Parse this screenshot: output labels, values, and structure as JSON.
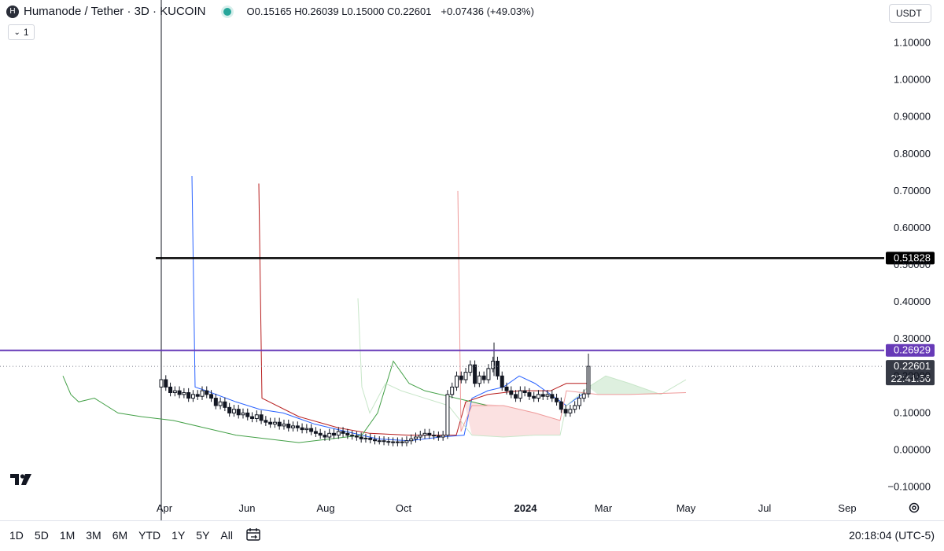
{
  "header": {
    "symbol": "Humanode / Tether · 3D · KUCOIN",
    "ohlc": "O0.15165  H0.26039  L0.15000  C0.22601",
    "change": "+0.07436 (+49.03%)",
    "legend_count": "1",
    "unit": "USDT"
  },
  "footer": {
    "ranges": [
      "1D",
      "5D",
      "1M",
      "3M",
      "6M",
      "YTD",
      "1Y",
      "5Y",
      "All"
    ],
    "clock": "20:18:04 (UTC-5)"
  },
  "colors": {
    "up": "#26a69a",
    "down": "#131722",
    "conversion": "#2962ff",
    "base": "#b71c1c",
    "lagging": "#43a047",
    "cloud_bear": "#f7c9c9",
    "cloud_bull": "#c8e6c9",
    "purple_line": "#673ab7",
    "black_line": "#000000"
  },
  "chart_data": {
    "type": "candlestick",
    "y_axis_ticks": [
      "1.10000",
      "1.00000",
      "0.90000",
      "0.80000",
      "0.70000",
      "0.60000",
      "0.50000",
      "0.40000",
      "0.30000",
      "0.20000",
      "0.10000",
      "0.00000",
      "−0.10000"
    ],
    "y_range": [
      -0.1,
      1.1
    ],
    "x_axis_ticks": [
      "Apr",
      "Jun",
      "Aug",
      "Oct",
      "2024",
      "Mar",
      "May",
      "Jul",
      "Sep"
    ],
    "price_labels": {
      "black_line": "0.51828",
      "purple_line": "0.26929",
      "last_price": "0.22601",
      "countdown": "22:41:56"
    },
    "horizontal_lines": [
      {
        "name": "black-line",
        "value": 0.51828
      },
      {
        "name": "purple-line",
        "value": 0.26929
      }
    ],
    "candles_close": [
      0.19,
      0.17,
      0.155,
      0.16,
      0.15,
      0.155,
      0.14,
      0.15,
      0.145,
      0.16,
      0.15,
      0.14,
      0.12,
      0.13,
      0.115,
      0.1,
      0.11,
      0.095,
      0.1,
      0.09,
      0.085,
      0.095,
      0.08,
      0.075,
      0.07,
      0.075,
      0.065,
      0.07,
      0.06,
      0.065,
      0.06,
      0.055,
      0.058,
      0.05,
      0.045,
      0.04,
      0.035,
      0.045,
      0.04,
      0.05,
      0.045,
      0.04,
      0.038,
      0.035,
      0.03,
      0.032,
      0.028,
      0.025,
      0.025,
      0.023,
      0.022,
      0.02,
      0.022,
      0.02,
      0.025,
      0.03,
      0.035,
      0.04,
      0.045,
      0.04,
      0.038,
      0.035,
      0.04,
      0.15,
      0.17,
      0.2,
      0.19,
      0.21,
      0.23,
      0.18,
      0.2,
      0.19,
      0.22,
      0.24,
      0.2,
      0.17,
      0.16,
      0.15,
      0.14,
      0.16,
      0.155,
      0.145,
      0.14,
      0.15,
      0.145,
      0.15,
      0.14,
      0.13,
      0.11,
      0.1,
      0.11,
      0.12,
      0.14,
      0.1516,
      0.22601
    ],
    "ichimoku": {
      "conversion_spike_value": 0.74,
      "base_spike_value": 0.72,
      "lagging_spike_value": 0.41,
      "lead_spike_value": 0.7
    }
  }
}
